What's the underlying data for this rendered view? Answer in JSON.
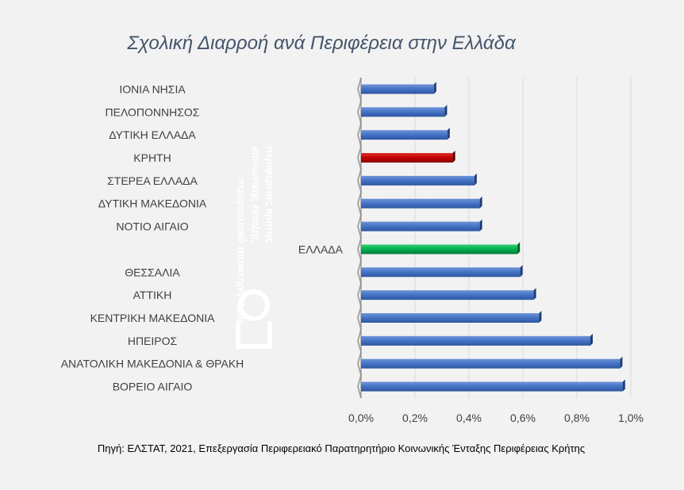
{
  "chart_data": {
    "type": "bar",
    "orientation": "horizontal",
    "title": "Σχολική Διαρροή ανά Περιφέρεια στην Ελλάδα",
    "categories": [
      "ΙΟΝΙΑ ΝΗΣΙΑ",
      "ΠΕΛΟΠΟΝΝΗΣΟΣ",
      "ΔΥΤΙΚΗ ΕΛΛΑΔΑ",
      "ΚΡΗΤΗ",
      "ΣΤΕΡΕΑ ΕΛΛΑΔΑ",
      "ΔΥΤΙΚΗ ΜΑΚΕΔΟΝΙΑ",
      "ΝΟΤΙΟ ΑΙΓΑΙΟ",
      "ΕΛΛΑΔΑ",
      "ΘΕΣΣΑΛΙΑ",
      "ΑΤΤΙΚΗ",
      "ΚΕΝΤΡΙΚΗ ΜΑΚΕΔΟΝΙΑ",
      "ΗΠΕΙΡΟΣ",
      "ΑΝΑΤΟΛΙΚΗ ΜΑΚΕΔΟΝΙΑ & ΘΡΑΚΗ",
      "ΒΟΡΕΙΟ ΑΙΓΑΙΟ"
    ],
    "values": [
      0.27,
      0.31,
      0.32,
      0.34,
      0.42,
      0.44,
      0.44,
      0.58,
      0.59,
      0.64,
      0.66,
      0.85,
      0.96,
      0.97
    ],
    "xlim": [
      0,
      1.0
    ],
    "xticks": [
      "0,0%",
      "0,2%",
      "0,4%",
      "0,6%",
      "0,8%",
      "1,0%"
    ],
    "grid": true,
    "colors": {
      "default": "#4472c4",
      "highlight_region": "#c00000",
      "highlight_country": "#00b050"
    },
    "highlight": {
      "ΚΡΗΤΗ": "#c00000",
      "ΕΛΛΑΔΑ": "#00b050"
    }
  },
  "source_note": "Πηγή: ΕΛΣΤΑΤ,  2021, Επεξεργασία Περιφερειακό Παρατηρητήριο Κοινωνικής Ένταξης Περιφέρειας Κρήτης",
  "watermark": {
    "lines": [
      "περιφερειακό παρατηρητήριο",
      "κοινωνικής ένταξης",
      "περιφέρειας κρήτης"
    ]
  }
}
